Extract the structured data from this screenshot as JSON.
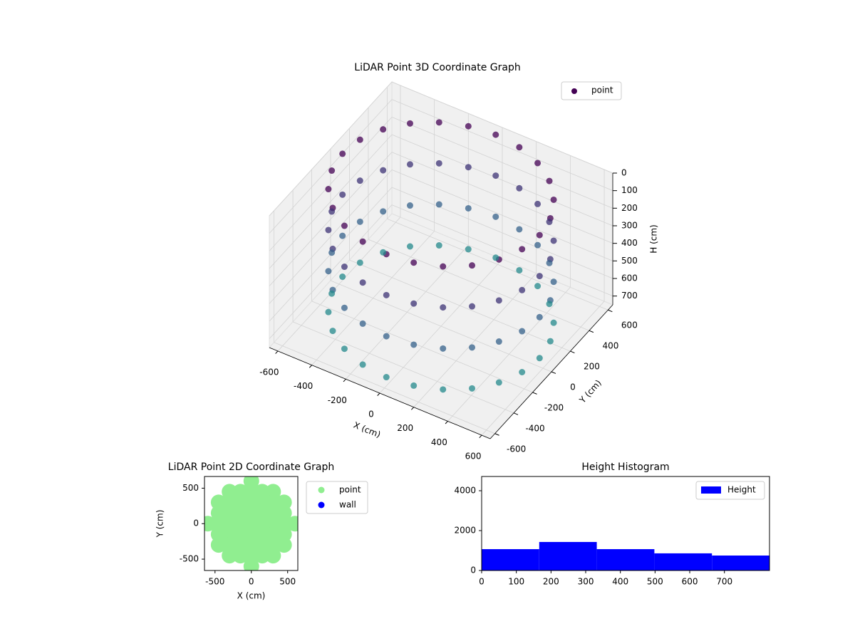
{
  "chart_data": [
    {
      "type": "scatter3d",
      "title": "LiDAR Point 3D Coordinate Graph",
      "xlabel": "X (cm)",
      "ylabel": "Y (cm)",
      "zlabel": "H (cm)",
      "xlim": [
        -650,
        650
      ],
      "ylim": [
        -650,
        650
      ],
      "zlim": [
        0,
        750
      ],
      "zinvert": true,
      "xticks": [
        -600,
        -400,
        -200,
        0,
        200,
        400,
        600
      ],
      "yticks": [
        -600,
        -400,
        -200,
        0,
        200,
        400,
        600
      ],
      "zticks": [
        0,
        100,
        200,
        300,
        400,
        500,
        600,
        700
      ],
      "legend": "upper right",
      "grid": true,
      "colormap": "viridis",
      "color_range": [
        0,
        1500
      ],
      "series": [
        {
          "name": "point",
          "color": "#440154",
          "x": [
            580,
            560,
            502,
            410,
            290,
            150,
            0,
            -150,
            -290,
            -410,
            -502,
            -560,
            -580,
            -560,
            -502,
            -410,
            -290,
            -150,
            0,
            150,
            290,
            410,
            502,
            560,
            580,
            560,
            502,
            410,
            290,
            150,
            0,
            -150,
            -290,
            -410,
            -502,
            -560,
            -580,
            -560,
            -502,
            -410,
            -290,
            -150,
            0,
            150,
            290,
            410,
            502,
            560,
            580,
            560,
            502,
            410,
            290,
            150,
            0,
            -150,
            -290,
            -410,
            -502,
            -560,
            -580,
            -560,
            -502,
            -410,
            -290,
            -150,
            0,
            150,
            290,
            410,
            502,
            560,
            580,
            560,
            502,
            410,
            290,
            150,
            0,
            -150,
            -290,
            -410,
            -502,
            -560,
            -580,
            -560,
            -502,
            -410,
            -290,
            -150,
            0,
            150,
            290,
            410,
            502,
            560
          ],
          "y": [
            0,
            150,
            290,
            410,
            502,
            560,
            580,
            560,
            502,
            410,
            290,
            150,
            0,
            -150,
            -290,
            -410,
            -502,
            -560,
            -580,
            -560,
            -502,
            -410,
            -290,
            -150,
            0,
            150,
            290,
            410,
            502,
            560,
            580,
            560,
            502,
            410,
            290,
            150,
            0,
            -150,
            -290,
            -410,
            -502,
            -560,
            -580,
            -560,
            -502,
            -410,
            -290,
            -150,
            0,
            150,
            290,
            410,
            502,
            560,
            580,
            560,
            502,
            410,
            290,
            150,
            0,
            -150,
            -290,
            -410,
            -502,
            -560,
            -580,
            -560,
            -502,
            -410,
            -290,
            -150,
            0,
            150,
            290,
            410,
            502,
            560,
            580,
            560,
            502,
            410,
            290,
            150,
            0,
            -150,
            -290,
            -410,
            -502,
            -560,
            -580,
            -560,
            -502,
            -410,
            -290,
            -150
          ],
          "z": [
            0,
            0,
            0,
            0,
            0,
            0,
            0,
            0,
            0,
            0,
            0,
            0,
            0,
            0,
            0,
            0,
            0,
            0,
            0,
            0,
            0,
            0,
            0,
            0,
            233,
            233,
            233,
            233,
            233,
            233,
            233,
            233,
            233,
            233,
            233,
            233,
            233,
            233,
            233,
            233,
            233,
            233,
            233,
            233,
            233,
            233,
            233,
            233,
            467,
            467,
            467,
            467,
            467,
            467,
            467,
            467,
            467,
            467,
            467,
            467,
            467,
            467,
            467,
            467,
            467,
            467,
            467,
            467,
            467,
            467,
            467,
            467,
            700,
            700,
            700,
            700,
            700,
            700,
            700,
            700,
            700,
            700,
            700,
            700,
            700,
            700,
            700,
            700,
            700,
            700,
            700,
            700,
            700,
            700,
            700,
            700
          ]
        }
      ]
    },
    {
      "type": "scatter",
      "title": "LiDAR Point 2D Coordinate Graph",
      "xlabel": "X (cm)",
      "ylabel": "Y (cm)",
      "xlim": [
        -645,
        640
      ],
      "ylim": [
        -660,
        665
      ],
      "xticks": [
        -500,
        0,
        500
      ],
      "yticks": [
        -500,
        0,
        500
      ],
      "legend": "outside upper right",
      "series": [
        {
          "name": "point",
          "color": "#90ee90",
          "x": [
            0,
            -300,
            -150,
            0,
            150,
            300,
            -450,
            -300,
            -150,
            0,
            150,
            300,
            450,
            -450,
            -300,
            -150,
            0,
            150,
            300,
            450,
            -600,
            -450,
            -300,
            -150,
            0,
            150,
            300,
            450,
            600,
            -450,
            -300,
            -150,
            0,
            150,
            300,
            450,
            -450,
            -300,
            -150,
            0,
            150,
            300,
            450,
            -300,
            -150,
            0,
            150,
            300,
            0
          ],
          "y": [
            600,
            450,
            450,
            450,
            450,
            450,
            300,
            300,
            300,
            300,
            300,
            300,
            300,
            150,
            150,
            150,
            150,
            150,
            150,
            150,
            0,
            0,
            0,
            0,
            0,
            0,
            0,
            0,
            0,
            -150,
            -150,
            -150,
            -150,
            -150,
            -150,
            -150,
            -300,
            -300,
            -300,
            -300,
            -300,
            -300,
            -300,
            -450,
            -450,
            -450,
            -450,
            -450,
            -600
          ]
        },
        {
          "name": "wall",
          "color": "#0000ff",
          "x": [],
          "y": []
        }
      ]
    },
    {
      "type": "histogram",
      "title": "Height Histogram",
      "bins": [
        0,
        166,
        332,
        498,
        664,
        830
      ],
      "series": [
        {
          "name": "Height",
          "color": "#0000ff",
          "values": [
            1070,
            1430,
            1070,
            860,
            750
          ]
        }
      ],
      "xlim": [
        0,
        830
      ],
      "ylim": [
        0,
        4714
      ],
      "xticks": [
        0,
        100,
        200,
        300,
        400,
        500,
        600,
        700
      ],
      "yticks": [
        0,
        2000,
        4000
      ],
      "legend": "upper right"
    }
  ]
}
